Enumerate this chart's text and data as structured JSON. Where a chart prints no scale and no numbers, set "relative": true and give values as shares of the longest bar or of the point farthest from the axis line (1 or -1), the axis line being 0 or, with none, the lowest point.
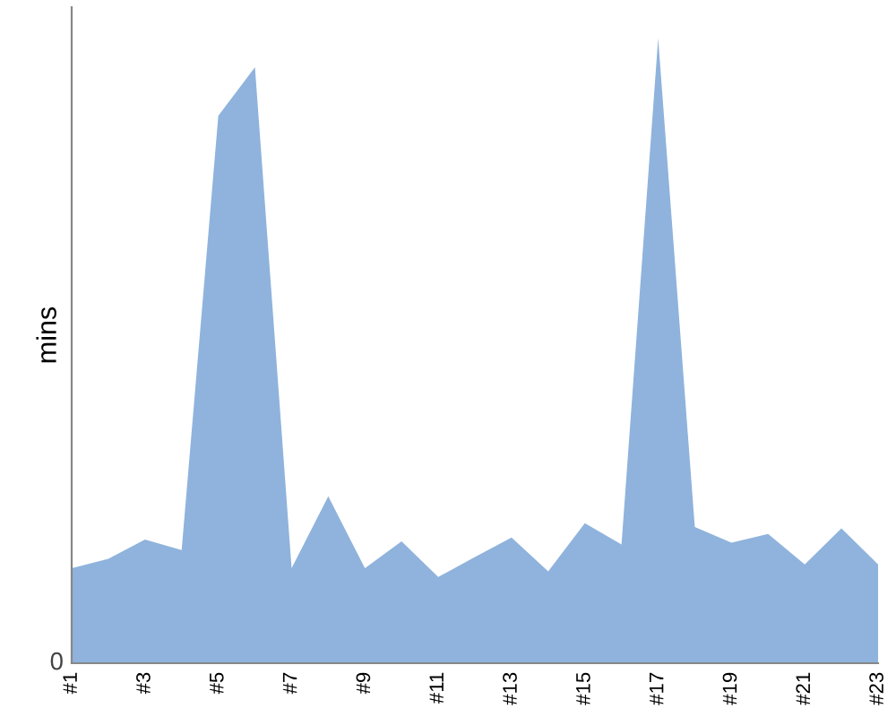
{
  "chart_data": {
    "type": "area",
    "relative": true,
    "ylabel": "mins",
    "annotations": [
      "0"
    ],
    "grid": false,
    "legend": false,
    "categories": [
      "#1",
      null,
      "#3",
      null,
      "#5",
      null,
      "#7",
      null,
      "#9",
      null,
      "#11",
      null,
      "#13",
      null,
      "#15",
      null,
      "#17",
      null,
      "#19",
      null,
      "#21",
      null,
      "#23"
    ],
    "series": [
      {
        "color": "#8fb3dc",
        "values": [
          0.152,
          0.167,
          0.198,
          0.181,
          0.876,
          0.954,
          0.152,
          0.267,
          0.152,
          0.195,
          0.138,
          0.17,
          0.201,
          0.147,
          0.224,
          0.19,
          1,
          0.218,
          0.193,
          0.207,
          0.158,
          0.216,
          0.158
        ]
      }
    ]
  }
}
